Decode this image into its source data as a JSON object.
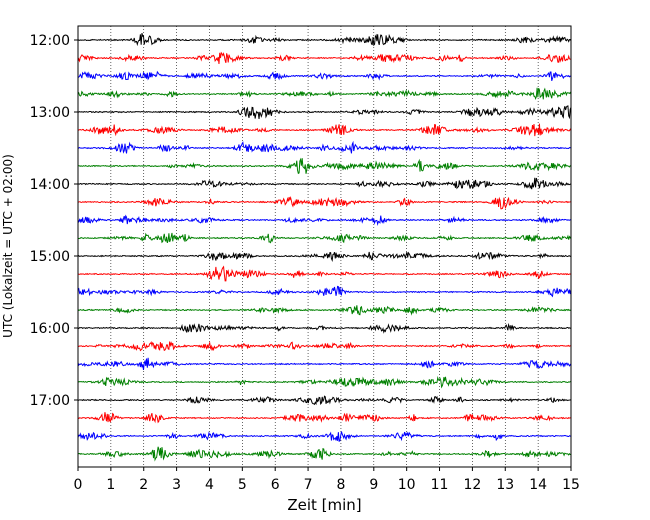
{
  "chart_data": {
    "type": "line",
    "chart_kind": "helicorder / seismogram drum plot",
    "xlabel": "Zeit  [min]",
    "ylabel": "UTC (Lokalzeit = UTC + 02:00)",
    "xlim": [
      0,
      15
    ],
    "x_ticks": [
      "0",
      "1",
      "2",
      "3",
      "4",
      "5",
      "6",
      "7",
      "8",
      "9",
      "10",
      "11",
      "12",
      "13",
      "14",
      "15"
    ],
    "y_ticks": [
      "12:00",
      "13:00",
      "14:00",
      "15:00",
      "16:00",
      "17:00"
    ],
    "grid": "vertical dotted lines at each minute",
    "line_colors": [
      "#000000",
      "#ff0000",
      "#0000ff",
      "#008000"
    ],
    "trace_start_times": [
      "12:00",
      "12:15",
      "12:30",
      "12:45",
      "13:00",
      "13:15",
      "13:30",
      "13:45",
      "14:00",
      "14:15",
      "14:30",
      "14:45",
      "15:00",
      "15:15",
      "15:30",
      "15:45",
      "16:00",
      "16:15",
      "16:30",
      "16:45",
      "17:00",
      "17:15",
      "17:30",
      "17:45"
    ],
    "minutes_per_trace": 15
  }
}
